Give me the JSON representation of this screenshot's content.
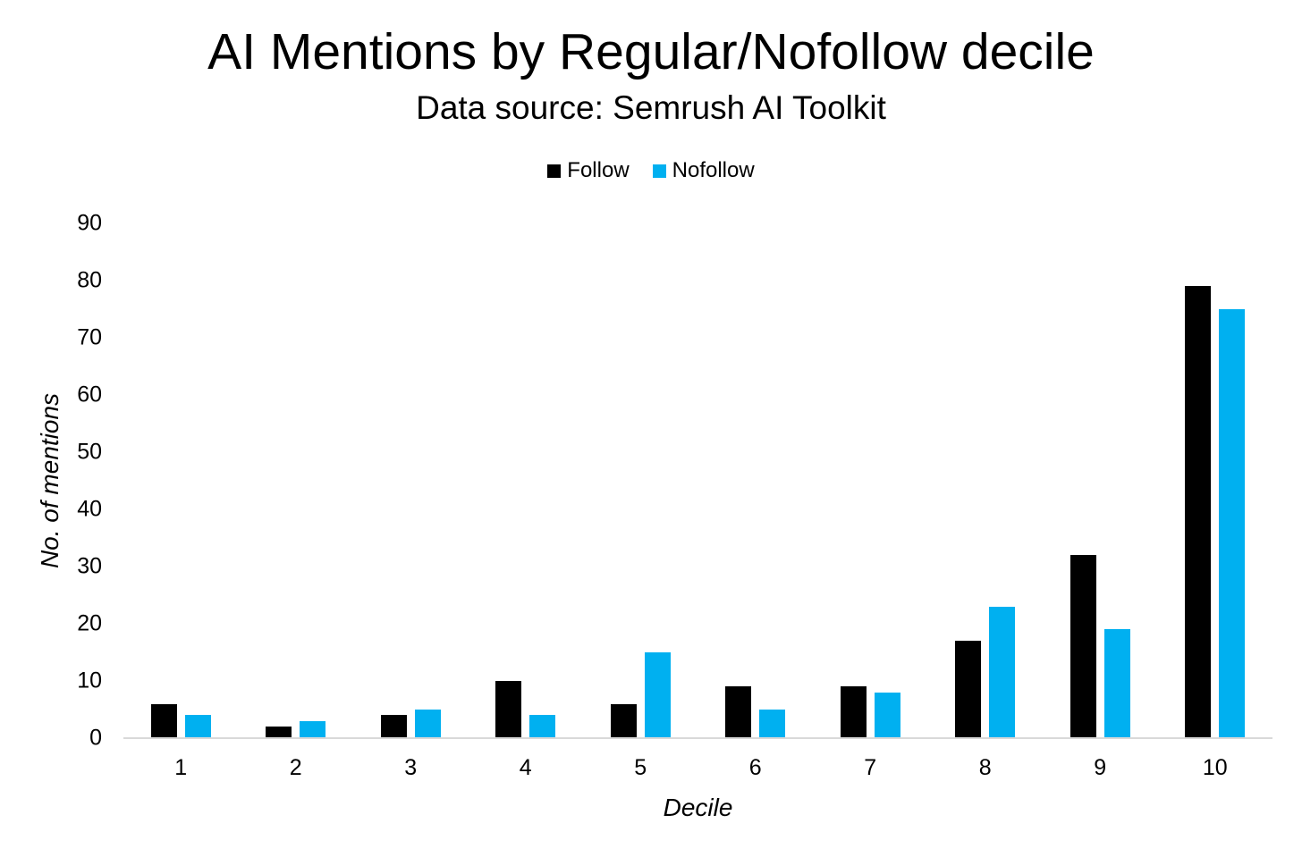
{
  "chart_data": {
    "type": "bar",
    "title": "AI Mentions by Regular/Nofollow decile",
    "subtitle": "Data source: Semrush AI Toolkit",
    "xlabel": "Decile",
    "ylabel": "No. of mentions",
    "categories": [
      "1",
      "2",
      "3",
      "4",
      "5",
      "6",
      "7",
      "8",
      "9",
      "10"
    ],
    "series": [
      {
        "name": "Follow",
        "color": "#000000",
        "values": [
          6,
          2,
          4,
          10,
          6,
          9,
          9,
          17,
          32,
          79
        ]
      },
      {
        "name": "Nofollow",
        "color": "#00b0f0",
        "values": [
          4,
          3,
          5,
          4,
          15,
          5,
          8,
          23,
          19,
          75
        ]
      }
    ],
    "ylim": [
      0,
      90
    ],
    "yticks": [
      0,
      10,
      20,
      30,
      40,
      50,
      60,
      70,
      80,
      90
    ],
    "grid": false,
    "legend_position": "top",
    "axis_line_color": "#d9d9d9",
    "background_color": "#ffffff"
  }
}
